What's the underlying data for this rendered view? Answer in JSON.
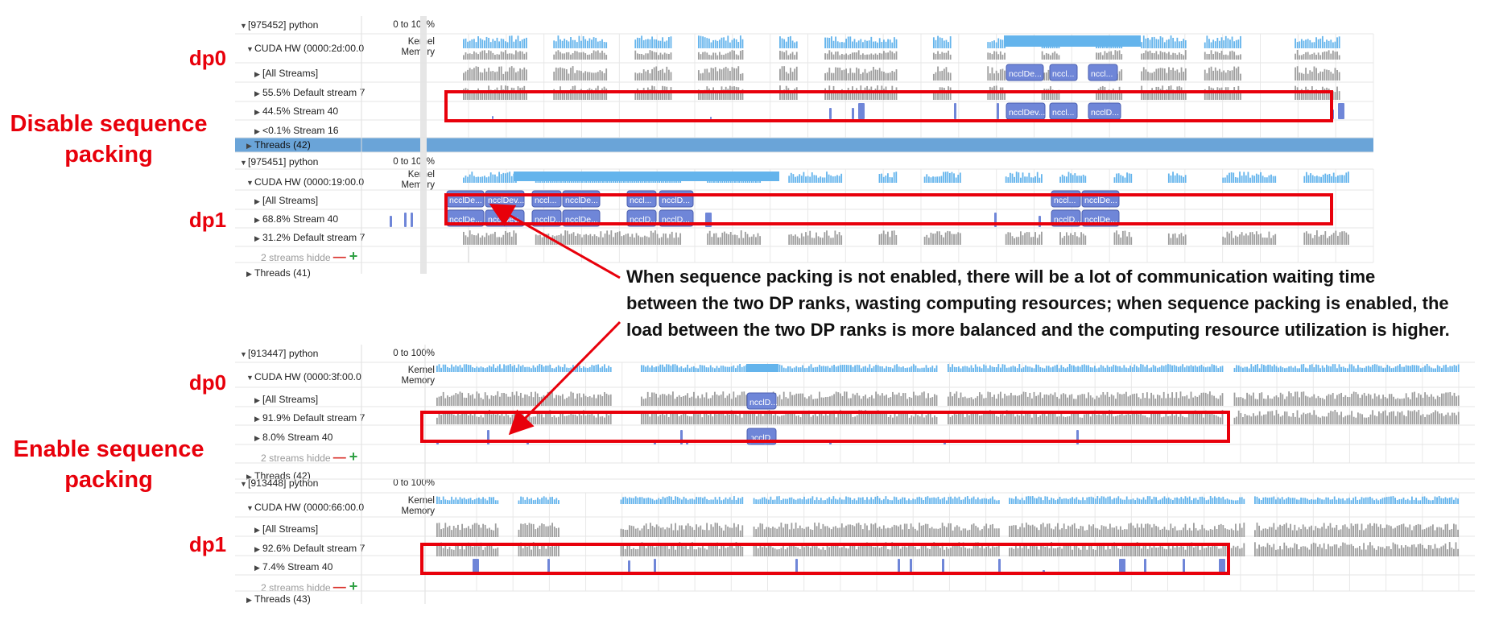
{
  "annotations": {
    "top_section": "Disable sequence\npacking",
    "bottom_section": "Enable sequence\npacking",
    "dp0": "dp0",
    "dp1": "dp1",
    "callout": "When sequence packing is not enabled, there will be a lot of communication waiting time\nbetween the two DP ranks, wasting computing resources; when sequence packing is enabled, the\nload between the two DP ranks is more balanced and the computing resource utilization is higher."
  },
  "colors": {
    "red_box": "#e8000b",
    "kernel_fill": "#64b4ec",
    "memory_fill": "#9e9e9e",
    "nccl_block": "#6f86d8",
    "selected_row": "#6aa4d8"
  },
  "top_panel": {
    "process_a": {
      "title": "[975452] python",
      "range": "0 to 100%",
      "cuda": "CUDA HW (0000:2d:00.0",
      "kernel_memory": "Kernel\nMemory",
      "streams": [
        "[All Streams]",
        "55.5% Default stream 7",
        "44.5% Stream 40",
        "<0.1% Stream 16"
      ],
      "threads": "Threads (42)"
    },
    "process_b": {
      "title": "[975451] python",
      "range": "0 to 100%",
      "cuda": "CUDA HW (0000:19:00.0",
      "kernel_memory": "Kernel\nMemory",
      "streams": [
        "[All Streams]",
        "68.8% Stream 40",
        "31.2% Default stream 7"
      ],
      "hidden": "2 streams hidde",
      "threads": "Threads (41)"
    },
    "kernel_labels_a": [
      "ncclDe...",
      "nccl...",
      "nccl..."
    ],
    "stream40_labels_a": [
      "ncclDev...",
      "nccl...",
      "ncclD..."
    ],
    "kernel_labels_b": [
      "ncclDe...",
      "ncclDev...",
      "nccl...",
      "ncclDe...",
      "nccl...",
      "ncclD...",
      "nccl...",
      "ncclDe..."
    ],
    "stream40_labels_b": [
      "ncclDe...",
      "ncclDev...",
      "ncclD...",
      "ncclDe...",
      "ncclD...",
      "ncclD...",
      "ncclD...",
      "ncclDe..."
    ]
  },
  "bottom_panel": {
    "process_a": {
      "title": "[913447] python",
      "range": "0 to 100%",
      "cuda": "CUDA HW (0000:3f:00.0",
      "kernel_memory": "Kernel\nMemory",
      "streams": [
        "[All Streams]",
        "91.9% Default stream 7",
        "8.0% Stream 40"
      ],
      "hidden": "2 streams hidde",
      "threads": "Threads (42)"
    },
    "process_b": {
      "title": "[913448] python",
      "range": "0 to 100%",
      "cuda": "CUDA HW (0000:66:00.0",
      "kernel_memory": "Kernel\nMemory",
      "streams": [
        "[All Streams]",
        "92.6% Default stream 7",
        "7.4% Stream 40"
      ],
      "hidden": "2 streams hidde",
      "threads": "Threads (43)"
    },
    "nccl_label": "ncclD..."
  }
}
